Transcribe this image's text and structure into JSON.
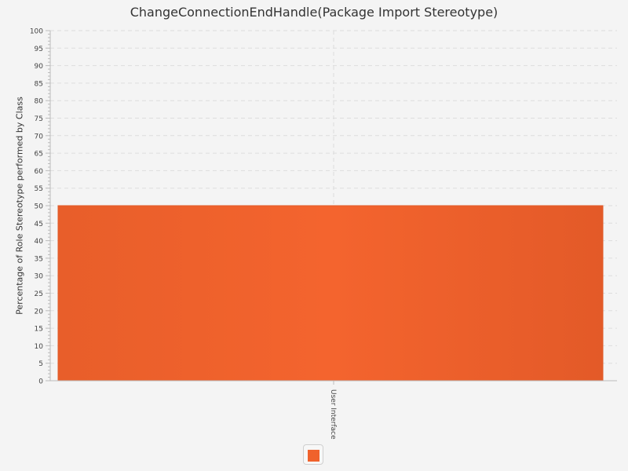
{
  "chart_data": {
    "type": "bar",
    "title": "ChangeConnectionEndHandle(Package Import Stereotype)",
    "xlabel": "",
    "ylabel": "Percentage of Role Stereotype performed by Class",
    "categories": [
      "User Interface"
    ],
    "series": [
      {
        "values": [
          50
        ]
      }
    ],
    "ylim": [
      0,
      100
    ],
    "yticks": [
      0,
      5,
      10,
      15,
      20,
      25,
      30,
      35,
      40,
      45,
      50,
      55,
      60,
      65,
      70,
      75,
      80,
      85,
      90,
      95,
      100
    ],
    "grid": true,
    "legend_position": "bottom",
    "colors": {
      "bar": "#f0622c",
      "bar_edge": "#e05a28",
      "grid": "#dddddd",
      "axis": "#bbbbbb"
    }
  }
}
